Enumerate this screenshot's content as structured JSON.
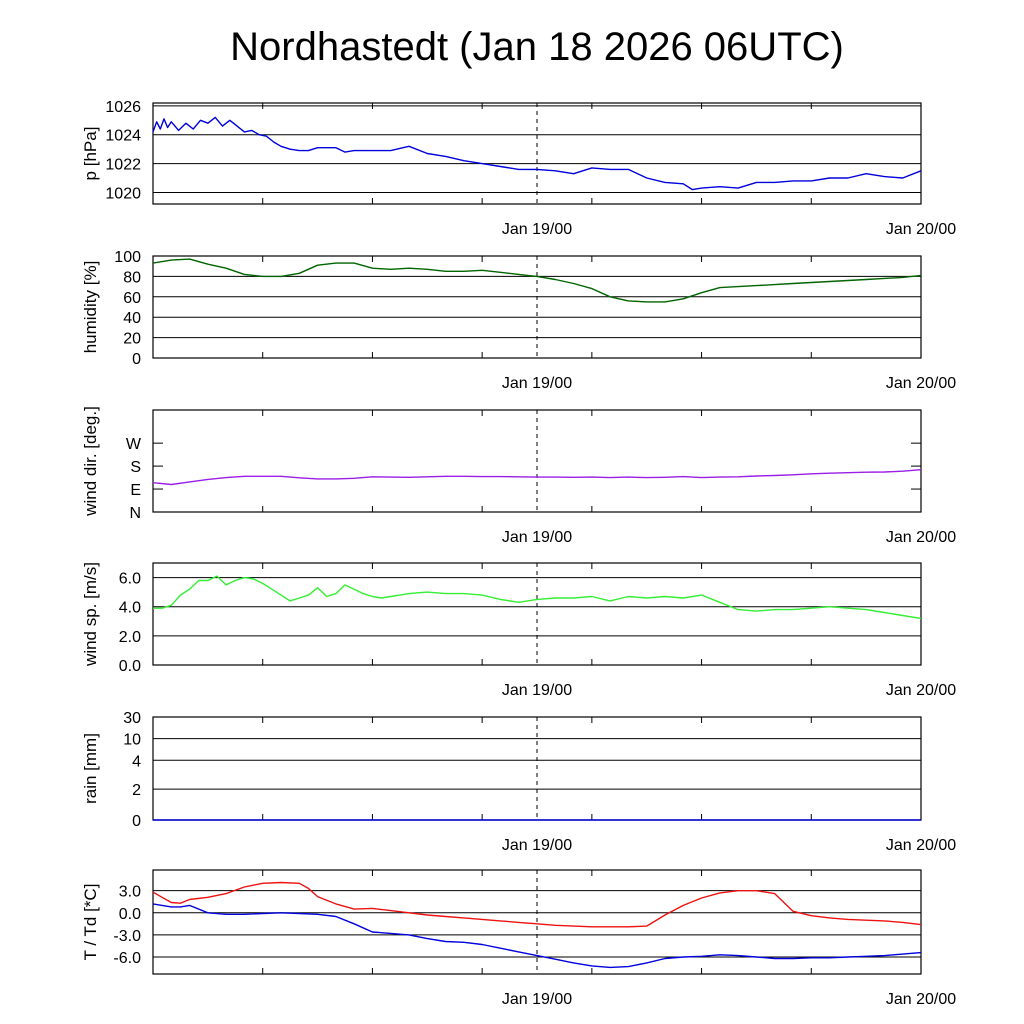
{
  "title": "Nordhastedt (Jan 18 2026 06UTC)",
  "colors": {
    "pressure": "#0000dd",
    "humidity": "#006400",
    "wind_dir": "#9a1ee6",
    "wind_speed": "#33ee33",
    "rain": "#0000dd",
    "temperature": "#ee1111",
    "dewpoint": "#0000dd"
  },
  "chart_data": [
    {
      "type": "line",
      "id": "pressure",
      "ylabel": "p [hPa]",
      "ylim": [
        1019.2,
        1026.2
      ],
      "yticks": [
        1020,
        1022,
        1024,
        1026
      ],
      "ytick_labels": [
        "1020",
        "1022",
        "1024",
        "1026"
      ],
      "xlim": [
        0,
        42
      ],
      "xtick_labels": [
        "Jan 19/00",
        "Jan 20/00"
      ],
      "series": [
        {
          "name": "pressure",
          "x": [
            0,
            0.2,
            0.4,
            0.6,
            0.8,
            1.0,
            1.4,
            1.8,
            2.2,
            2.6,
            3.0,
            3.4,
            3.8,
            4.2,
            4.6,
            5.0,
            5.4,
            5.8,
            6.2,
            6.6,
            7.0,
            7.5,
            8.0,
            8.5,
            9.0,
            9.5,
            10,
            10.5,
            11,
            12,
            13,
            14,
            15,
            16,
            17,
            18,
            19,
            20,
            21,
            22,
            23,
            24,
            25,
            26,
            27,
            28,
            29,
            29.5,
            30,
            31,
            32,
            33,
            34,
            35,
            36,
            37,
            38,
            39,
            40,
            41,
            42
          ],
          "values": [
            1024.2,
            1024.9,
            1024.4,
            1025.1,
            1024.5,
            1024.9,
            1024.3,
            1024.8,
            1024.4,
            1025.0,
            1024.8,
            1025.2,
            1024.6,
            1025.0,
            1024.6,
            1024.2,
            1024.3,
            1024.0,
            1023.9,
            1023.5,
            1023.2,
            1023.0,
            1022.9,
            1022.9,
            1023.1,
            1023.1,
            1023.1,
            1022.8,
            1022.9,
            1022.9,
            1022.9,
            1023.2,
            1022.7,
            1022.5,
            1022.2,
            1022.0,
            1021.8,
            1021.6,
            1021.6,
            1021.5,
            1021.3,
            1021.7,
            1021.6,
            1021.6,
            1021.0,
            1020.7,
            1020.6,
            1020.2,
            1020.3,
            1020.4,
            1020.3,
            1020.7,
            1020.7,
            1020.8,
            1020.8,
            1021.0,
            1021.0,
            1021.3,
            1021.1,
            1021.0,
            1021.5
          ]
        }
      ]
    },
    {
      "type": "line",
      "id": "humidity",
      "ylabel": "humidity [%]",
      "ylim": [
        0,
        100
      ],
      "yticks": [
        0,
        20,
        40,
        60,
        80,
        100
      ],
      "ytick_labels": [
        "0",
        "20",
        "40",
        "60",
        "80",
        "100"
      ],
      "xlim": [
        0,
        42
      ],
      "xtick_labels": [
        "Jan 19/00",
        "Jan 20/00"
      ],
      "series": [
        {
          "name": "humidity",
          "x": [
            0,
            1,
            2,
            3,
            4,
            5,
            6,
            7,
            8,
            9,
            10,
            11,
            12,
            13,
            14,
            15,
            16,
            17,
            18,
            19,
            20,
            21,
            22,
            23,
            24,
            25,
            26,
            27,
            28,
            29,
            30,
            31,
            32,
            33,
            34,
            35,
            36,
            37,
            38,
            39,
            40,
            41,
            42
          ],
          "values": [
            93,
            96,
            97,
            92,
            88,
            82,
            80,
            80,
            83,
            91,
            93,
            93,
            88,
            87,
            88,
            87,
            85,
            85,
            86,
            84,
            82,
            80,
            77,
            73,
            68,
            60,
            56,
            55,
            55,
            58,
            64,
            69,
            70,
            71,
            72,
            73,
            74,
            75,
            76,
            77,
            78,
            79,
            81
          ]
        }
      ]
    },
    {
      "type": "line",
      "id": "wind_dir",
      "ylabel": "wind dir. [deg.]",
      "ylim": [
        0,
        400
      ],
      "yticks": [
        0,
        90,
        180,
        270
      ],
      "ytick_labels": [
        "N",
        "E",
        "S",
        "W"
      ],
      "xlim": [
        0,
        42
      ],
      "xtick_labels": [
        "Jan 19/00",
        "Jan 20/00"
      ],
      "series": [
        {
          "name": "wind direction",
          "x": [
            0,
            1,
            2,
            3,
            4,
            5,
            6,
            7,
            8,
            9,
            10,
            11,
            12,
            13,
            14,
            15,
            16,
            17,
            18,
            19,
            20,
            21,
            22,
            23,
            24,
            25,
            26,
            27,
            28,
            29,
            30,
            31,
            32,
            33,
            34,
            35,
            36,
            37,
            38,
            39,
            40,
            41,
            42
          ],
          "values": [
            115,
            108,
            118,
            128,
            135,
            140,
            140,
            140,
            134,
            130,
            130,
            132,
            138,
            137,
            136,
            138,
            140,
            140,
            139,
            139,
            138,
            137,
            137,
            136,
            137,
            135,
            137,
            135,
            136,
            139,
            135,
            137,
            138,
            141,
            143,
            146,
            150,
            152,
            154,
            156,
            157,
            160,
            166
          ]
        }
      ]
    },
    {
      "type": "line",
      "id": "wind_speed",
      "ylabel": "wind sp. [m/s]",
      "ylim": [
        0,
        7
      ],
      "yticks": [
        0,
        2,
        4,
        6
      ],
      "ytick_labels": [
        "0.0",
        "2.0",
        "4.0",
        "6.0"
      ],
      "xlim": [
        0,
        42
      ],
      "xtick_labels": [
        "Jan 19/00",
        "Jan 20/00"
      ],
      "series": [
        {
          "name": "wind speed",
          "x": [
            0,
            0.5,
            1,
            1.5,
            2,
            2.5,
            3,
            3.5,
            4,
            4.5,
            5,
            5.5,
            6,
            6.5,
            7,
            7.5,
            8,
            8.5,
            9,
            9.5,
            10,
            10.5,
            11,
            11.5,
            12,
            12.5,
            13,
            13.5,
            14,
            15,
            16,
            17,
            18,
            19,
            20,
            21,
            22,
            23,
            24,
            25,
            26,
            27,
            28,
            29,
            30,
            31,
            32,
            33,
            34,
            35,
            36,
            37,
            38,
            39,
            40,
            41,
            42
          ],
          "values": [
            3.9,
            3.9,
            4.1,
            4.8,
            5.2,
            5.8,
            5.8,
            6.1,
            5.5,
            5.8,
            6.0,
            5.9,
            5.6,
            5.2,
            4.8,
            4.4,
            4.6,
            4.8,
            5.3,
            4.7,
            4.9,
            5.5,
            5.2,
            4.9,
            4.7,
            4.6,
            4.7,
            4.8,
            4.9,
            5.0,
            4.9,
            4.9,
            4.8,
            4.5,
            4.3,
            4.5,
            4.6,
            4.6,
            4.7,
            4.4,
            4.7,
            4.6,
            4.7,
            4.6,
            4.8,
            4.3,
            3.8,
            3.7,
            3.8,
            3.8,
            3.9,
            4.0,
            3.9,
            3.8,
            3.6,
            3.4,
            3.2
          ]
        }
      ]
    },
    {
      "type": "line",
      "id": "rain",
      "ylabel": "rain [mm]",
      "ylim": [
        0,
        30
      ],
      "yticks": [
        0,
        2,
        4,
        10,
        30
      ],
      "ytick_labels": [
        "0",
        "2",
        "4",
        "10",
        "30"
      ],
      "xlim": [
        0,
        42
      ],
      "xtick_labels": [
        "Jan 19/00",
        "Jan 20/00"
      ],
      "series": [
        {
          "name": "rain",
          "x": [
            0,
            42
          ],
          "values": [
            0,
            0
          ]
        }
      ]
    },
    {
      "type": "line",
      "id": "temperature",
      "ylabel": "T / Td [*C]",
      "ylim": [
        -8.3,
        5.8
      ],
      "yticks": [
        -6,
        -3,
        0,
        3
      ],
      "ytick_labels": [
        "-6.0",
        "-3.0",
        "0.0",
        "3.0"
      ],
      "xlim": [
        0,
        42
      ],
      "xtick_labels": [
        "Jan 19/00",
        "Jan 20/00"
      ],
      "series": [
        {
          "name": "temperature",
          "x": [
            0,
            0.5,
            1,
            1.5,
            2,
            3,
            4,
            5,
            6,
            7,
            8,
            8.5,
            9,
            10,
            11,
            12,
            13,
            14,
            15,
            16,
            17,
            18,
            19,
            20,
            21,
            22,
            23,
            24,
            25,
            26,
            27,
            28,
            29,
            30,
            31,
            32,
            33,
            34,
            35,
            36,
            37,
            38,
            39,
            40,
            41,
            42
          ],
          "values": [
            2.8,
            2.1,
            1.4,
            1.3,
            1.8,
            2.1,
            2.6,
            3.5,
            4.0,
            4.1,
            4.0,
            3.3,
            2.2,
            1.2,
            0.5,
            0.6,
            0.3,
            0.0,
            -0.3,
            -0.5,
            -0.7,
            -0.9,
            -1.1,
            -1.3,
            -1.5,
            -1.7,
            -1.8,
            -1.9,
            -1.9,
            -1.9,
            -1.8,
            -0.3,
            1.0,
            2.0,
            2.7,
            3.0,
            3.0,
            2.6,
            0.2,
            -0.4,
            -0.7,
            -0.9,
            -1.0,
            -1.1,
            -1.3,
            -1.6
          ]
        },
        {
          "name": "dewpoint",
          "x": [
            0,
            0.5,
            1,
            1.5,
            2,
            3,
            4,
            5,
            6,
            7,
            8,
            9,
            10,
            11,
            12,
            13,
            14,
            15,
            16,
            17,
            18,
            19,
            20,
            21,
            22,
            23,
            24,
            25,
            26,
            27,
            28,
            29,
            30,
            31,
            32,
            33,
            34,
            35,
            36,
            37,
            38,
            39,
            40,
            41,
            42
          ],
          "values": [
            1.2,
            1.0,
            0.8,
            0.8,
            1.0,
            0.0,
            -0.2,
            -0.2,
            -0.1,
            0.0,
            -0.1,
            -0.2,
            -0.5,
            -1.5,
            -2.6,
            -2.8,
            -3.0,
            -3.5,
            -3.9,
            -4.0,
            -4.3,
            -4.8,
            -5.3,
            -5.8,
            -6.3,
            -6.8,
            -7.2,
            -7.4,
            -7.3,
            -6.8,
            -6.2,
            -6.0,
            -5.9,
            -5.7,
            -5.8,
            -6.0,
            -6.2,
            -6.2,
            -6.1,
            -6.1,
            -6.0,
            -5.9,
            -5.8,
            -5.6,
            -5.4
          ]
        }
      ]
    }
  ]
}
